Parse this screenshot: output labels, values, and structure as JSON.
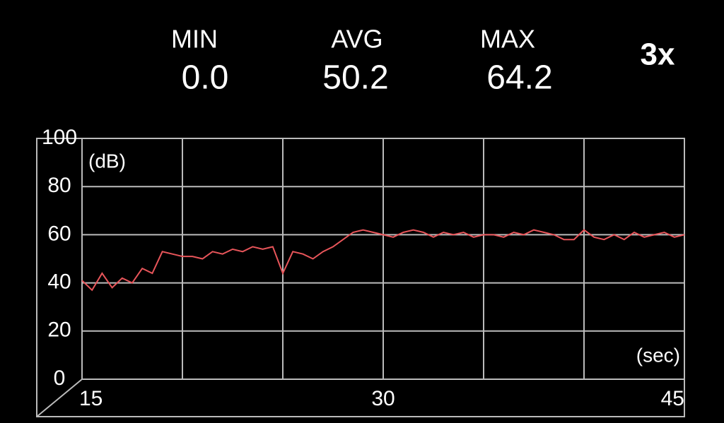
{
  "stats": [
    {
      "label": "MIN",
      "value": "0.0"
    },
    {
      "label": "AVG",
      "value": "50.2"
    },
    {
      "label": "MAX",
      "value": "64.2"
    }
  ],
  "zoom": "3x",
  "chart_data": {
    "type": "line",
    "y_unit_label": "(dB)",
    "x_unit_label": "(sec)",
    "x": [
      15,
      15.5,
      16,
      16.5,
      17,
      17.5,
      18,
      18.5,
      19,
      19.5,
      20,
      20.5,
      21,
      21.5,
      22,
      22.5,
      23,
      23.5,
      24,
      24.5,
      25,
      25.5,
      26,
      26.5,
      27,
      27.5,
      28,
      28.5,
      29,
      29.5,
      30,
      30.5,
      31,
      31.5,
      32,
      32.5,
      33,
      33.5,
      34,
      34.5,
      35,
      35.5,
      36,
      36.5,
      37,
      37.5,
      38,
      38.5,
      39,
      39.5,
      40,
      40.5,
      41,
      41.5,
      42,
      42.5,
      43,
      43.5,
      44,
      44.5,
      45
    ],
    "values": [
      41,
      37,
      44,
      38,
      42,
      40,
      46,
      44,
      53,
      52,
      51,
      51,
      50,
      53,
      52,
      54,
      53,
      55,
      54,
      55,
      44,
      53,
      52,
      50,
      53,
      55,
      58,
      61,
      62,
      61,
      60,
      59,
      61,
      62,
      61,
      59,
      61,
      60,
      61,
      59,
      60,
      60,
      59,
      61,
      60,
      62,
      61,
      60,
      58,
      58,
      62,
      59,
      58,
      60,
      58,
      61,
      59,
      60,
      61,
      59,
      60
    ],
    "color": "#e8555a",
    "xlim": [
      15,
      45
    ],
    "ylim": [
      0,
      100
    ],
    "xticks": [
      15,
      30,
      45
    ],
    "yticks": [
      0,
      20,
      40,
      60,
      80,
      100
    ],
    "xgrid": [
      15,
      20,
      25,
      30,
      35,
      40,
      45
    ],
    "grid": true
  }
}
